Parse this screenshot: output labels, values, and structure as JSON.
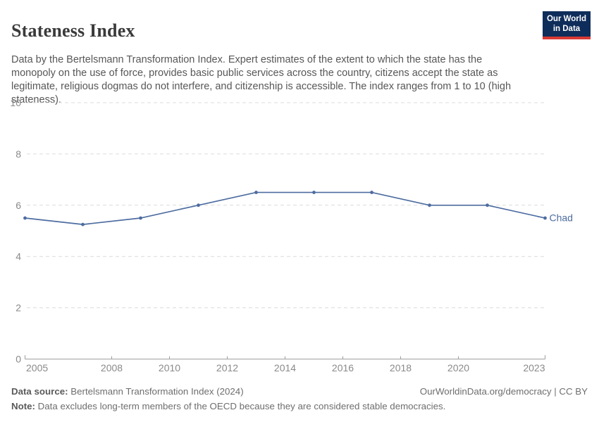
{
  "header": {
    "title": "Stateness Index",
    "subtitle": "Data by the Bertelsmann Transformation Index. Expert estimates of the extent to which the state has the monopoly on the use of force, provides basic public services across the country, citizens accept the state as legitimate, religious dogmas do not interfere, and citizenship is accessible. The index ranges from 1 to 10 (high stateness).",
    "logo": {
      "line1": "Our World",
      "line2": "in Data",
      "bg_color": "#0e2d5a",
      "accent_color": "#d93a35"
    }
  },
  "chart_data": {
    "type": "line",
    "title": "Stateness Index",
    "entity": "Chad",
    "x": [
      2005,
      2007,
      2009,
      2011,
      2013,
      2015,
      2017,
      2019,
      2021,
      2023
    ],
    "series": [
      {
        "name": "Chad",
        "color": "#4d6ca0",
        "values": [
          5.5,
          5.25,
          5.5,
          6,
          6.5,
          6.5,
          6.5,
          6,
          6,
          5.5
        ]
      }
    ],
    "xlim": [
      2005,
      2023
    ],
    "ylim": [
      0,
      10
    ],
    "yticks": [
      0,
      2,
      4,
      6,
      8,
      10
    ],
    "xticks": [
      2005,
      2008,
      2010,
      2012,
      2014,
      2016,
      2018,
      2020,
      2023
    ],
    "grid": true,
    "grid_color": "#dcdcdc",
    "axis_color": "#9e9e9e",
    "tick_label_color": "#8a8a8a",
    "legend_position": "end-of-line-label"
  },
  "footer": {
    "source_label": "Data source:",
    "source_text": " Bertelsmann Transformation Index (2024)",
    "link": "OurWorldinData.org/democracy | CC BY",
    "note_label": "Note:",
    "note_text": " Data excludes long-term members of the OECD because they are considered stable democracies."
  }
}
